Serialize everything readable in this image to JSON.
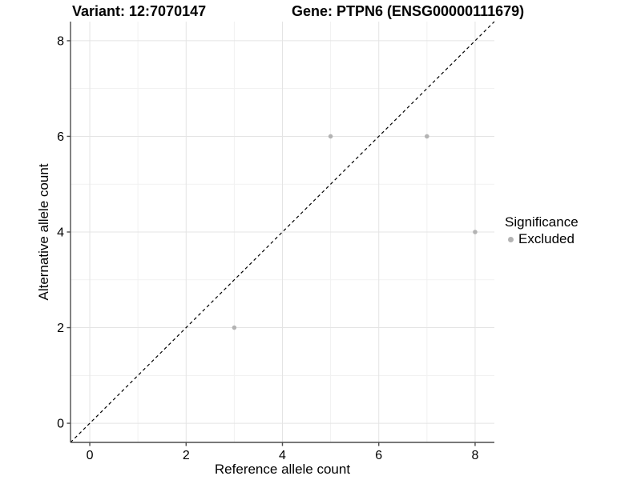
{
  "figure": {
    "variant_title": "Variant: 12:7070147",
    "gene_title": "Gene: PTPN6 (ENSG00000111679)"
  },
  "chart_data": {
    "type": "scatter",
    "title_left": "Variant: 12:7070147",
    "title_right": "Gene: PTPN6 (ENSG00000111679)",
    "xlabel": "Reference allele count",
    "ylabel": "Alternative allele count",
    "xlim": [
      -0.4,
      8.4
    ],
    "ylim": [
      -0.4,
      8.4
    ],
    "xticks": [
      0,
      2,
      4,
      6,
      8
    ],
    "yticks": [
      0,
      2,
      4,
      6,
      8
    ],
    "xminor": [
      1,
      3,
      5,
      7
    ],
    "yminor": [
      1,
      3,
      5,
      7
    ],
    "grid": true,
    "identity_line": {
      "style": "dashed",
      "color": "#000000",
      "from": -0.4,
      "to": 8.4
    },
    "series": [
      {
        "name": "Excluded",
        "color": "#b3b3b3",
        "points": [
          [
            3,
            2
          ],
          [
            5,
            6
          ],
          [
            7,
            6
          ],
          [
            8,
            4
          ]
        ]
      }
    ],
    "legend": {
      "title": "Significance",
      "position": "right",
      "items": [
        {
          "label": "Excluded",
          "color": "#b3b3b3"
        }
      ]
    }
  },
  "colors": {
    "grid_major": "#e4e4e4",
    "grid_minor": "#f1f1f1",
    "axis": "#4d4d4d",
    "point": "#b3b3b3",
    "text": "#000000",
    "background": "#ffffff"
  }
}
